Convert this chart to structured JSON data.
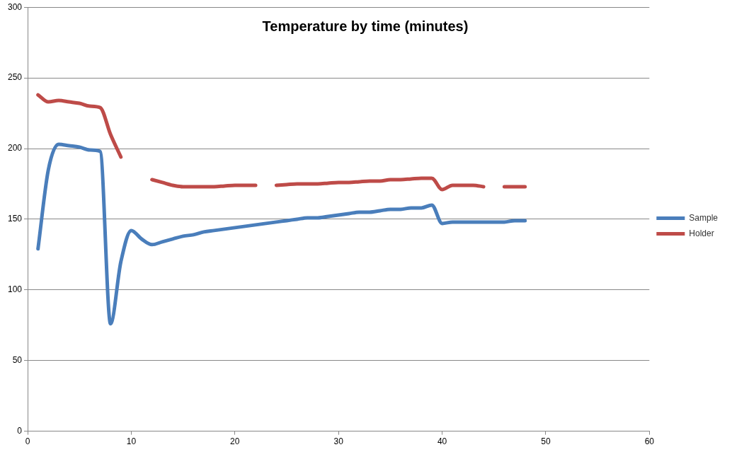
{
  "chart_data": {
    "type": "line",
    "title": "Temperature by time (minutes)",
    "x": [
      1,
      2,
      3,
      4,
      5,
      6,
      7,
      8,
      9,
      10,
      11,
      12,
      13,
      14,
      15,
      16,
      17,
      18,
      19,
      20,
      21,
      22,
      23,
      24,
      25,
      26,
      27,
      28,
      29,
      30,
      31,
      32,
      33,
      34,
      35,
      36,
      37,
      38,
      39,
      40,
      41,
      42,
      43,
      44,
      45,
      46,
      47,
      48
    ],
    "series": [
      {
        "name": "Sample",
        "color": "#4a7ebb",
        "values": [
          129,
          185,
          203,
          202,
          201,
          199,
          198,
          76,
          120,
          142,
          136,
          132,
          134,
          136,
          138,
          139,
          141,
          142,
          143,
          144,
          145,
          146,
          147,
          148,
          149,
          150,
          151,
          151,
          152,
          153,
          154,
          155,
          155,
          156,
          157,
          157,
          158,
          158,
          160,
          147,
          148,
          148,
          148,
          148,
          148,
          148,
          149,
          149
        ]
      },
      {
        "name": "Holder",
        "color": "#be4b48",
        "values": [
          238,
          233,
          234,
          233,
          232,
          230,
          229,
          210,
          194,
          null,
          null,
          178,
          176,
          174,
          173,
          173,
          173,
          173,
          173.5,
          174,
          174,
          174,
          null,
          174,
          174.5,
          175,
          175,
          175,
          175.5,
          176,
          176,
          176.5,
          177,
          177,
          178,
          178,
          178.5,
          179,
          179,
          171,
          174,
          174,
          174,
          173,
          null,
          173,
          173,
          173
        ]
      }
    ],
    "xlim": [
      0,
      60
    ],
    "xticks": [
      0,
      10,
      20,
      30,
      40,
      50,
      60
    ],
    "ylim": [
      0,
      300
    ],
    "yticks": [
      0,
      50,
      100,
      150,
      200,
      250,
      300
    ],
    "grid": "y",
    "legend": "right",
    "marker": "none",
    "line_style": "solid"
  }
}
